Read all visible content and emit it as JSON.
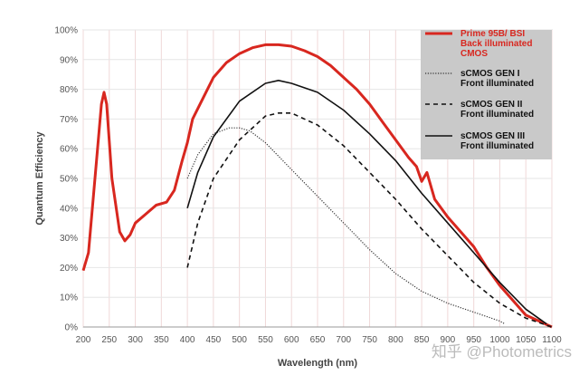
{
  "chart_data": {
    "type": "line",
    "xlabel": "Wavelength (nm)",
    "ylabel": "Quantum Efficiency",
    "xlim": [
      200,
      1100
    ],
    "ylim": [
      0,
      100
    ],
    "xticks": [
      "200",
      "250",
      "300",
      "350",
      "400",
      "450",
      "500",
      "550",
      "600",
      "650",
      "700",
      "750",
      "800",
      "850",
      "900",
      "950",
      "1000",
      "1050",
      "1100"
    ],
    "yticks": [
      "0%",
      "10%",
      "20%",
      "30%",
      "40%",
      "50%",
      "60%",
      "70%",
      "80%",
      "90%",
      "100%"
    ],
    "grid": true,
    "legend_position": "top-right",
    "series": [
      {
        "name": "Prime 95B/ BSI Back illuminated CMOS",
        "legend_lines": [
          "Prime 95B/ BSI",
          "Back illuminated",
          "CMOS"
        ],
        "color": "#d8271f",
        "style": "solid",
        "x": [
          200,
          210,
          225,
          235,
          240,
          245,
          255,
          270,
          280,
          290,
          300,
          320,
          340,
          360,
          375,
          390,
          400,
          410,
          430,
          450,
          475,
          500,
          525,
          550,
          575,
          600,
          625,
          650,
          675,
          700,
          725,
          750,
          775,
          800,
          825,
          840,
          850,
          860,
          875,
          900,
          925,
          950,
          975,
          1000,
          1025,
          1050,
          1075,
          1100
        ],
        "y": [
          19,
          25,
          55,
          75,
          79,
          75,
          50,
          32,
          29,
          31,
          35,
          38,
          41,
          42,
          46,
          56,
          62,
          70,
          77,
          84,
          89,
          92,
          94,
          95,
          95,
          94.5,
          93,
          91,
          88,
          84,
          80,
          75,
          69,
          63,
          57,
          54,
          49,
          52,
          43,
          37,
          32,
          27,
          20,
          14,
          9,
          4,
          2,
          0
        ]
      },
      {
        "name": "sCMOS GEN I Front illuminated",
        "legend_lines": [
          "sCMOS GEN I",
          "Front illuminated"
        ],
        "color": "#333333",
        "style": "dotted",
        "x": [
          400,
          420,
          450,
          480,
          500,
          520,
          550,
          600,
          650,
          700,
          750,
          800,
          850,
          900,
          950,
          1000,
          1010
        ],
        "y": [
          50,
          58,
          65,
          67,
          67,
          66,
          62,
          53,
          44,
          35,
          26,
          18,
          12,
          8,
          5,
          2,
          1
        ]
      },
      {
        "name": "sCMOS GEN II Front illuminated",
        "legend_lines": [
          "sCMOS GEN II",
          "Front illuminated"
        ],
        "color": "#111111",
        "style": "dashed",
        "x": [
          400,
          420,
          450,
          500,
          550,
          575,
          600,
          650,
          700,
          750,
          800,
          850,
          900,
          950,
          1000,
          1050,
          1100
        ],
        "y": [
          20,
          35,
          50,
          63,
          71,
          72,
          72,
          68,
          61,
          52,
          43,
          33,
          24,
          15,
          8,
          3,
          0
        ]
      },
      {
        "name": "sCMOS GEN III Front illuminated",
        "legend_lines": [
          "sCMOS GEN III",
          "Front illuminated"
        ],
        "color": "#111111",
        "style": "solid",
        "x": [
          400,
          420,
          450,
          500,
          550,
          575,
          600,
          650,
          700,
          750,
          800,
          850,
          900,
          950,
          1000,
          1050,
          1090
        ],
        "y": [
          40,
          52,
          64,
          76,
          82,
          83,
          82,
          79,
          73,
          65,
          56,
          45,
          35,
          25,
          15,
          6,
          1
        ]
      }
    ]
  },
  "watermark": "知乎 @Photometrics"
}
